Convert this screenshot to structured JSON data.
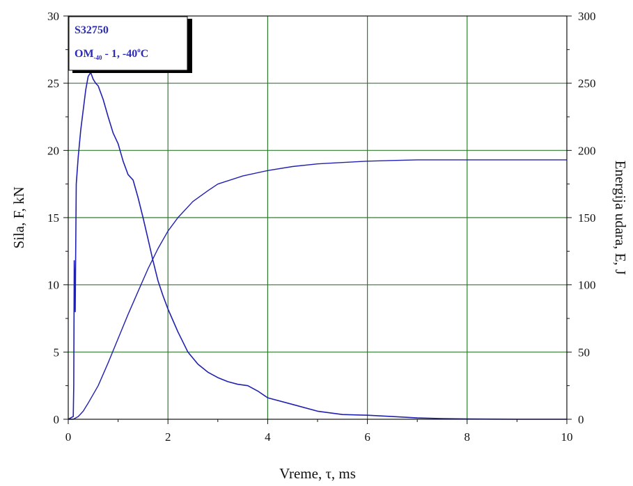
{
  "chart_data": {
    "type": "line",
    "xlabel": "Vreme,  τ, ms",
    "ylabel_left": "Sila,  F, kN",
    "ylabel_right": "Energija udara,  E, J",
    "xlim": [
      0,
      10
    ],
    "ylim_left": [
      0,
      30
    ],
    "ylim_right": [
      0,
      300
    ],
    "x_ticks": [
      "0",
      "2",
      "4",
      "6",
      "8",
      "10"
    ],
    "y_left_ticks": [
      "0",
      "5",
      "10",
      "15",
      "20",
      "25",
      "30"
    ],
    "y_right_ticks": [
      "0",
      "50",
      "100",
      "150",
      "200",
      "250",
      "300"
    ],
    "grid": true,
    "grid_color": "#2e7d2e",
    "line_color": "#2020b0",
    "legend": {
      "position": "top-left",
      "line1": "S32750",
      "line2_main": "OM",
      "line2_sub": "-40",
      "line2_rest": " - 1,  -40",
      "line2_sup": "o",
      "line2_end": "C"
    },
    "series": [
      {
        "axis": "left",
        "units": "kN",
        "x": [
          0,
          0.1,
          0.11,
          0.12,
          0.14,
          0.16,
          0.2,
          0.25,
          0.3,
          0.35,
          0.4,
          0.45,
          0.5,
          0.55,
          0.6,
          0.7,
          0.8,
          0.9,
          1.0,
          1.1,
          1.2,
          1.3,
          1.4,
          1.5,
          1.6,
          1.7,
          1.8,
          1.9,
          2.0,
          2.2,
          2.4,
          2.6,
          2.8,
          3.0,
          3.2,
          3.4,
          3.6,
          3.8,
          4.0,
          4.5,
          5.0,
          5.5,
          6.0,
          6.5,
          7.0,
          7.5,
          8.0,
          9.0,
          10.0
        ],
        "y": [
          0,
          0.2,
          2.5,
          11.8,
          8,
          17.5,
          19.5,
          21.5,
          23,
          24.5,
          25.5,
          25.8,
          25.3,
          25,
          24.8,
          23.8,
          22.5,
          21.3,
          20.5,
          19.2,
          18.2,
          17.8,
          16.5,
          15,
          13.4,
          11.8,
          10.3,
          9.2,
          8.2,
          6.5,
          5,
          4.1,
          3.5,
          3.1,
          2.8,
          2.6,
          2.5,
          2.1,
          1.6,
          1.1,
          0.6,
          0.35,
          0.3,
          0.2,
          0.1,
          0.05,
          0.02,
          0.0,
          0.0
        ]
      },
      {
        "axis": "right",
        "units": "J",
        "x": [
          0,
          0.1,
          0.2,
          0.3,
          0.4,
          0.6,
          0.8,
          1.0,
          1.2,
          1.4,
          1.6,
          1.8,
          2.0,
          2.2,
          2.5,
          2.8,
          3.0,
          3.5,
          4.0,
          4.5,
          5.0,
          5.5,
          6.0,
          6.5,
          7.0,
          8.0,
          9.0,
          10.0
        ],
        "y": [
          0,
          0,
          2,
          6,
          12,
          25,
          42,
          60,
          78,
          95,
          112,
          127,
          140,
          150,
          162,
          170,
          175,
          181,
          185,
          188,
          190,
          191,
          192,
          192.5,
          193,
          193,
          193,
          193
        ]
      }
    ]
  }
}
